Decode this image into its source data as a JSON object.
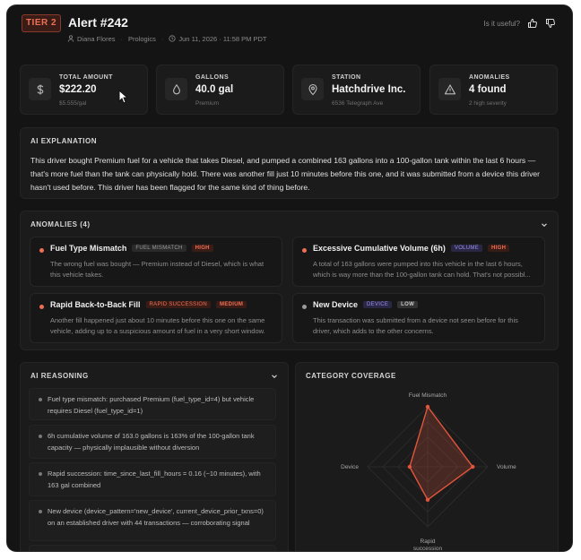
{
  "header": {
    "tier": "TIER 2",
    "title": "Alert #242",
    "driver": "Diana Flores",
    "company": "Prologics",
    "timestamp": "Jun 11, 2026 · 11:58 PM PDT",
    "useful_prompt": "Is it useful?"
  },
  "stats": [
    {
      "label": "TOTAL AMOUNT",
      "value": "$222.20",
      "sub": "$5.555/gal",
      "icon": "dollar-icon"
    },
    {
      "label": "GALLONS",
      "value": "40.0 gal",
      "sub": "Premium",
      "icon": "droplet-icon"
    },
    {
      "label": "STATION",
      "value": "Hatchdrive Inc.",
      "sub": "6536 Telegraph Ave",
      "icon": "map-pin-icon"
    },
    {
      "label": "ANOMALIES",
      "value": "4 found",
      "sub": "2 high severity",
      "icon": "warning-icon"
    }
  ],
  "explanation": {
    "title": "AI EXPLANATION",
    "text": "This driver bought Premium fuel for a vehicle that takes Diesel, and pumped a combined 163 gallons into a 100-gallon tank within the last 6 hours — that's more fuel than the tank can physically hold. There was another fill just 10 minutes before this one, and it was submitted from a device this driver hasn't used before. This driver has been flagged for the same kind of thing before."
  },
  "anomalies": {
    "title": "ANOMALIES (4)",
    "items": [
      {
        "name": "Fuel Type Mismatch",
        "category": "FUEL MISMATCH",
        "severity": "HIGH",
        "line1": "The wrong fuel was bought — Premium instead of Diesel, which is what",
        "line2": "this vehicle takes."
      },
      {
        "name": "Excessive Cumulative Volume (6h)",
        "category": "VOLUME",
        "severity": "HIGH",
        "line1": "A total of 163 gallons were pumped into this vehicle in the last 6 hours,",
        "line2": "which is way more than the 100-gallon tank can hold. That's not possibl..."
      },
      {
        "name": "Rapid Back-to-Back Fill",
        "category": "RAPID SUCCESSION",
        "severity": "MEDIUM",
        "line1": "Another fill happened just about 10 minutes before this one on the same",
        "line2": "vehicle, adding up to a suspicious amount of fuel in a very short window."
      },
      {
        "name": "New Device",
        "category": "DEVICE",
        "severity": "LOW",
        "line1": "This transaction was submitted from a device not seen before for this",
        "line2": "driver, which adds to the other concerns."
      }
    ]
  },
  "reasoning": {
    "title": "AI REASONING",
    "items": [
      "Fuel type mismatch: purchased Premium (fuel_type_id=4) but vehicle requires Diesel (fuel_type_id=1)",
      "6h cumulative volume of 163.0 gallons is 163% of the 100-gallon tank capacity — physically implausible without diversion",
      "Rapid succession: time_since_last_fill_hours = 0.16 (~10 minutes), with 163 gal combined",
      "New device (device_pattern='new_device', current_device_prior_txns=0) on an established driver with 44 transactions — corroborating signal"
    ]
  },
  "coverage": {
    "title": "CATEGORY COVERAGE"
  },
  "chart_data": {
    "type": "radar",
    "title": "CATEGORY COVERAGE",
    "axes": [
      "Fuel Mismatch",
      "Volume",
      "Rapid succession",
      "Device"
    ],
    "values": [
      1.0,
      0.75,
      0.55,
      0.3
    ],
    "range": [
      0,
      1
    ],
    "color": "#e2553b"
  },
  "colors": {
    "accent": "#ef6f55",
    "background": "#141414",
    "card": "#1b1b1b"
  }
}
